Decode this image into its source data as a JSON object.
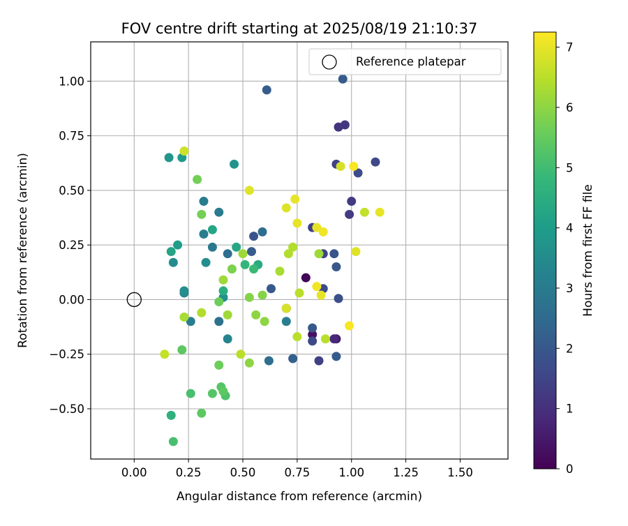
{
  "chart_data": {
    "type": "scatter",
    "title": "FOV centre drift starting at 2025/08/19 21:10:37",
    "xlabel": "Angular distance from reference (arcmin)",
    "ylabel": "Rotation from reference (arcmin)",
    "xlim": [
      -0.2,
      1.72
    ],
    "ylim": [
      -0.73,
      1.18
    ],
    "x_ticks": [
      "0.00",
      "0.25",
      "0.50",
      "0.75",
      "1.00",
      "1.25",
      "1.50"
    ],
    "y_ticks": [
      "−0.50",
      "−0.25",
      "0.00",
      "0.25",
      "0.50",
      "0.75",
      "1.00"
    ],
    "grid": true,
    "legend": {
      "placement": "top-right",
      "entries": [
        "Reference platepar"
      ]
    },
    "reference_point": {
      "x": 0.0,
      "y": 0.0,
      "marker": "open-circle",
      "color": "#000000"
    },
    "colorbar": {
      "label": "Hours from first FF file",
      "colormap": "viridis",
      "range": [
        0,
        7.25
      ],
      "ticks": [
        "0",
        "1",
        "2",
        "3",
        "4",
        "5",
        "6",
        "7"
      ]
    },
    "colormap_stops": [
      "#440154",
      "#482878",
      "#3e4989",
      "#31688e",
      "#26828e",
      "#1f9e89",
      "#35b779",
      "#6ece58",
      "#b5de2b",
      "#fde725"
    ],
    "points": [
      {
        "x": 0.79,
        "y": 0.1,
        "t": 0.1
      },
      {
        "x": 0.82,
        "y": -0.16,
        "t": 0.3
      },
      {
        "x": 0.93,
        "y": -0.18,
        "t": 0.5
      },
      {
        "x": 0.7,
        "y": -0.04,
        "t": 0.6
      },
      {
        "x": 0.92,
        "y": -0.18,
        "t": 0.8
      },
      {
        "x": 0.94,
        "y": 0.79,
        "t": 1.1
      },
      {
        "x": 0.97,
        "y": 0.8,
        "t": 1.2
      },
      {
        "x": 0.99,
        "y": 0.39,
        "t": 1.3
      },
      {
        "x": 1.0,
        "y": 0.45,
        "t": 1.3
      },
      {
        "x": 0.93,
        "y": 0.62,
        "t": 1.5
      },
      {
        "x": 1.11,
        "y": 0.63,
        "t": 1.6
      },
      {
        "x": 1.03,
        "y": 0.58,
        "t": 1.7
      },
      {
        "x": 0.85,
        "y": -0.28,
        "t": 1.4
      },
      {
        "x": 0.82,
        "y": 0.33,
        "t": 1.4
      },
      {
        "x": 0.87,
        "y": 0.21,
        "t": 1.5
      },
      {
        "x": 0.82,
        "y": -0.19,
        "t": 1.6
      },
      {
        "x": 0.87,
        "y": 0.05,
        "t": 1.7
      },
      {
        "x": 0.94,
        "y": 0.005,
        "t": 1.8
      },
      {
        "x": 0.92,
        "y": 0.21,
        "t": 1.9
      },
      {
        "x": 0.93,
        "y": 0.15,
        "t": 2.0
      },
      {
        "x": 0.82,
        "y": -0.13,
        "t": 2.0
      },
      {
        "x": 0.93,
        "y": -0.26,
        "t": 2.1
      },
      {
        "x": 0.96,
        "y": 1.01,
        "t": 2.1
      },
      {
        "x": 0.61,
        "y": 0.96,
        "t": 2.1
      },
      {
        "x": 0.55,
        "y": 0.29,
        "t": 1.9
      },
      {
        "x": 0.54,
        "y": 0.22,
        "t": 2.1
      },
      {
        "x": 0.63,
        "y": 0.05,
        "t": 2.0
      },
      {
        "x": 0.73,
        "y": -0.27,
        "t": 2.2
      },
      {
        "x": 0.62,
        "y": -0.28,
        "t": 2.6
      },
      {
        "x": 0.59,
        "y": 0.31,
        "t": 2.6
      },
      {
        "x": 0.43,
        "y": 0.21,
        "t": 2.6
      },
      {
        "x": 0.39,
        "y": -0.1,
        "t": 2.7
      },
      {
        "x": 0.36,
        "y": 0.24,
        "t": 2.9
      },
      {
        "x": 0.32,
        "y": 0.45,
        "t": 3.0
      },
      {
        "x": 0.39,
        "y": 0.4,
        "t": 3.0
      },
      {
        "x": 0.32,
        "y": 0.3,
        "t": 3.1
      },
      {
        "x": 0.7,
        "y": -0.1,
        "t": 3.1
      },
      {
        "x": 0.26,
        "y": -0.1,
        "t": 3.1
      },
      {
        "x": 0.23,
        "y": 0.03,
        "t": 3.3
      },
      {
        "x": 0.43,
        "y": -0.18,
        "t": 3.3
      },
      {
        "x": 0.18,
        "y": 0.17,
        "t": 3.5
      },
      {
        "x": 0.33,
        "y": 0.17,
        "t": 3.6
      },
      {
        "x": 0.23,
        "y": 0.04,
        "t": 3.6
      },
      {
        "x": 0.41,
        "y": 0.01,
        "t": 3.6
      },
      {
        "x": 0.46,
        "y": 0.62,
        "t": 3.7
      },
      {
        "x": 0.16,
        "y": 0.65,
        "t": 3.8
      },
      {
        "x": 0.22,
        "y": 0.65,
        "t": 3.9
      },
      {
        "x": 0.2,
        "y": 0.25,
        "t": 4.0
      },
      {
        "x": 0.17,
        "y": 0.22,
        "t": 4.2
      },
      {
        "x": 0.36,
        "y": 0.32,
        "t": 4.3
      },
      {
        "x": 0.47,
        "y": 0.24,
        "t": 4.3
      },
      {
        "x": 0.57,
        "y": 0.16,
        "t": 4.4
      },
      {
        "x": 0.41,
        "y": 0.04,
        "t": 4.5
      },
      {
        "x": 0.17,
        "y": -0.53,
        "t": 4.6
      },
      {
        "x": 0.51,
        "y": 0.16,
        "t": 4.8
      },
      {
        "x": 0.55,
        "y": 0.14,
        "t": 4.9
      },
      {
        "x": 0.18,
        "y": -0.65,
        "t": 5.1
      },
      {
        "x": 0.26,
        "y": -0.43,
        "t": 5.1
      },
      {
        "x": 0.42,
        "y": -0.44,
        "t": 5.2
      },
      {
        "x": 0.36,
        "y": -0.43,
        "t": 5.3
      },
      {
        "x": 0.4,
        "y": -0.4,
        "t": 5.3
      },
      {
        "x": 0.41,
        "y": -0.42,
        "t": 5.4
      },
      {
        "x": 0.31,
        "y": -0.52,
        "t": 5.4
      },
      {
        "x": 0.22,
        "y": -0.23,
        "t": 5.4
      },
      {
        "x": 0.39,
        "y": -0.3,
        "t": 5.6
      },
      {
        "x": 0.39,
        "y": -0.01,
        "t": 5.6
      },
      {
        "x": 0.29,
        "y": 0.55,
        "t": 5.7
      },
      {
        "x": 0.31,
        "y": 0.39,
        "t": 5.7
      },
      {
        "x": 0.45,
        "y": 0.14,
        "t": 5.8
      },
      {
        "x": 0.59,
        "y": 0.02,
        "t": 5.9
      },
      {
        "x": 0.53,
        "y": 0.01,
        "t": 5.9
      },
      {
        "x": 0.53,
        "y": -0.29,
        "t": 6.0
      },
      {
        "x": 0.56,
        "y": -0.07,
        "t": 6.0
      },
      {
        "x": 0.6,
        "y": -0.1,
        "t": 6.0
      },
      {
        "x": 0.43,
        "y": -0.07,
        "t": 6.2
      },
      {
        "x": 0.41,
        "y": 0.09,
        "t": 6.2
      },
      {
        "x": 0.5,
        "y": 0.21,
        "t": 6.2
      },
      {
        "x": 0.23,
        "y": -0.08,
        "t": 6.3
      },
      {
        "x": 0.67,
        "y": 0.13,
        "t": 6.3
      },
      {
        "x": 0.71,
        "y": 0.21,
        "t": 6.4
      },
      {
        "x": 0.73,
        "y": 0.24,
        "t": 6.4
      },
      {
        "x": 0.76,
        "y": 0.03,
        "t": 6.5
      },
      {
        "x": 0.75,
        "y": -0.17,
        "t": 6.5
      },
      {
        "x": 0.88,
        "y": -0.18,
        "t": 6.5
      },
      {
        "x": 0.85,
        "y": 0.21,
        "t": 6.2
      },
      {
        "x": 0.31,
        "y": -0.06,
        "t": 6.4
      },
      {
        "x": 0.49,
        "y": -0.25,
        "t": 6.5
      },
      {
        "x": 0.14,
        "y": -0.25,
        "t": 6.6
      },
      {
        "x": 0.23,
        "y": 0.68,
        "t": 6.7
      },
      {
        "x": 0.7,
        "y": -0.04,
        "t": 6.8
      },
      {
        "x": 0.53,
        "y": 0.5,
        "t": 6.9
      },
      {
        "x": 0.7,
        "y": 0.42,
        "t": 6.9
      },
      {
        "x": 0.75,
        "y": 0.35,
        "t": 7.0
      },
      {
        "x": 0.74,
        "y": 0.46,
        "t": 7.0
      },
      {
        "x": 0.84,
        "y": 0.33,
        "t": 7.0
      },
      {
        "x": 0.87,
        "y": 0.31,
        "t": 7.1
      },
      {
        "x": 0.84,
        "y": 0.06,
        "t": 7.1
      },
      {
        "x": 0.86,
        "y": 0.02,
        "t": 7.0
      },
      {
        "x": 0.95,
        "y": 0.61,
        "t": 6.8
      },
      {
        "x": 1.01,
        "y": 0.61,
        "t": 7.2
      },
      {
        "x": 1.06,
        "y": 0.4,
        "t": 6.6
      },
      {
        "x": 1.13,
        "y": 0.4,
        "t": 7.0
      },
      {
        "x": 1.02,
        "y": 0.22,
        "t": 6.9
      },
      {
        "x": 0.99,
        "y": -0.12,
        "t": 7.2
      }
    ]
  }
}
